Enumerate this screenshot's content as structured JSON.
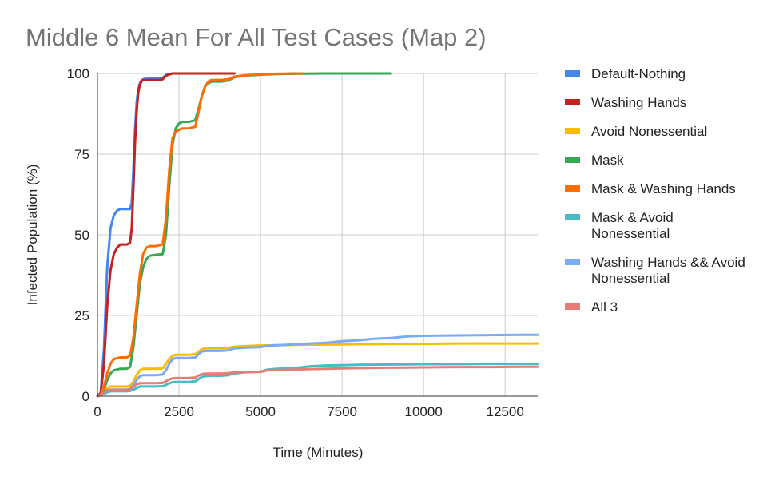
{
  "chart_data": {
    "type": "line",
    "title": "Middle 6 Mean For All Test Cases (Map 2)",
    "xlabel": "Time (Minutes)",
    "ylabel": "Infected Population (%)",
    "xlim": [
      0,
      13500
    ],
    "ylim": [
      0,
      100
    ],
    "xticks": [
      0,
      2500,
      5000,
      7500,
      10000,
      12500
    ],
    "yticks": [
      0,
      25,
      50,
      75,
      100
    ],
    "grid": true,
    "legend_position": "right",
    "series": [
      {
        "name": "Default-Nothing",
        "color": "#4285f4",
        "x": [
          0,
          100,
          200,
          300,
          400,
          500,
          600,
          700,
          800,
          900,
          1000,
          1050,
          1100,
          1150,
          1200,
          1250,
          1300,
          1350,
          1400,
          1500,
          1700,
          1900,
          2000,
          2100,
          2200,
          2300,
          2500,
          3000,
          3500,
          4000,
          4100
        ],
        "y": [
          0,
          1,
          15,
          40,
          52,
          56,
          57.5,
          58,
          58,
          58,
          58,
          60,
          70,
          82,
          91,
          95,
          97,
          97.8,
          98.2,
          98.5,
          98.5,
          98.5,
          98.7,
          99.5,
          99.8,
          100,
          100,
          100,
          100,
          100,
          100
        ]
      },
      {
        "name": "Washing Hands",
        "color": "#c5221f",
        "x": [
          0,
          100,
          200,
          300,
          400,
          500,
          600,
          700,
          800,
          900,
          1000,
          1050,
          1100,
          1150,
          1200,
          1250,
          1300,
          1350,
          1400,
          1500,
          1700,
          1900,
          2000,
          2100,
          2200,
          2300,
          2500,
          3000,
          3500,
          4000,
          4200
        ],
        "y": [
          0,
          1,
          10,
          28,
          39,
          44,
          46,
          47,
          47,
          47,
          47.5,
          52,
          64,
          78,
          88,
          94,
          96.5,
          97.5,
          98,
          98,
          98,
          98,
          98.2,
          99.3,
          99.7,
          100,
          100,
          100,
          100,
          100,
          100
        ]
      },
      {
        "name": "Avoid Nonessential",
        "color": "#fbbc04",
        "x": [
          0,
          100,
          200,
          300,
          400,
          500,
          700,
          900,
          1000,
          1100,
          1200,
          1300,
          1400,
          1600,
          1800,
          2000,
          2100,
          2200,
          2300,
          2400,
          2600,
          2800,
          3000,
          3100,
          3200,
          3300,
          3500,
          3800,
          4000,
          4200,
          4500,
          5000,
          5500,
          6000,
          7000,
          8000,
          9000,
          10000,
          11000,
          12000,
          13000,
          13500
        ],
        "y": [
          0,
          0.5,
          1.5,
          2.5,
          3,
          3,
          3,
          3,
          3.2,
          4.5,
          6.5,
          8,
          8.5,
          8.5,
          8.5,
          8.6,
          10,
          11.5,
          12.5,
          12.8,
          12.8,
          12.8,
          13,
          13.8,
          14.5,
          14.8,
          14.8,
          14.8,
          15,
          15.3,
          15.5,
          15.7,
          15.8,
          15.9,
          16,
          16.1,
          16.2,
          16.2,
          16.3,
          16.3,
          16.3,
          16.3
        ]
      },
      {
        "name": "Mask",
        "color": "#34a853",
        "x": [
          0,
          100,
          200,
          300,
          400,
          500,
          700,
          900,
          1000,
          1100,
          1200,
          1300,
          1400,
          1500,
          1600,
          1800,
          2000,
          2100,
          2200,
          2300,
          2400,
          2500,
          2600,
          2800,
          3000,
          3100,
          3200,
          3300,
          3400,
          3500,
          3800,
          4000,
          4200,
          4500,
          5000,
          5500,
          6000,
          7000,
          8000,
          9000
        ],
        "y": [
          0,
          0.5,
          2,
          5,
          7,
          8,
          8.5,
          8.5,
          9,
          15,
          25,
          35,
          40,
          42.5,
          43.5,
          43.8,
          44,
          50,
          65,
          78,
          83,
          84.5,
          85,
          85,
          85.5,
          89,
          93,
          96,
          97,
          97.5,
          97.5,
          97.8,
          98.8,
          99.3,
          99.6,
          99.8,
          99.9,
          100,
          100,
          100
        ]
      },
      {
        "name": "Mask & Washing Hands",
        "color": "#ff6d01",
        "x": [
          0,
          100,
          200,
          300,
          400,
          500,
          700,
          900,
          1000,
          1100,
          1200,
          1300,
          1400,
          1500,
          1600,
          1800,
          2000,
          2100,
          2200,
          2300,
          2400,
          2500,
          2600,
          2800,
          3000,
          3100,
          3200,
          3300,
          3400,
          3500,
          3800,
          4000,
          4200,
          4500,
          5000,
          5500,
          6000,
          6300
        ],
        "y": [
          0,
          0.5,
          3,
          7,
          10,
          11.5,
          12,
          12,
          12.5,
          18,
          28,
          38,
          44,
          46,
          46.5,
          46.5,
          47,
          55,
          70,
          80,
          82,
          82.5,
          83,
          83,
          83.5,
          88,
          93,
          96,
          97.5,
          98,
          98,
          98.2,
          99,
          99.4,
          99.7,
          99.9,
          100,
          100
        ]
      },
      {
        "name": "Mask & Avoid Nonessential",
        "color": "#46bdc6",
        "x": [
          0,
          100,
          200,
          300,
          400,
          500,
          700,
          900,
          1000,
          1100,
          1200,
          1300,
          1400,
          1600,
          1800,
          2000,
          2100,
          2200,
          2300,
          2400,
          2600,
          2800,
          3000,
          3100,
          3200,
          3300,
          3500,
          3800,
          4000,
          4200,
          4500,
          5000,
          5200,
          5500,
          6000,
          6500,
          7000,
          7500,
          8000,
          9000,
          10000,
          11000,
          12000,
          13000,
          13500
        ],
        "y": [
          0,
          0.3,
          0.8,
          1.2,
          1.5,
          1.5,
          1.5,
          1.5,
          1.6,
          2,
          2.5,
          3,
          3,
          3,
          3,
          3.1,
          3.5,
          4,
          4.3,
          4.4,
          4.4,
          4.4,
          4.6,
          5.3,
          6,
          6.2,
          6.3,
          6.3,
          6.5,
          7,
          7.4,
          7.6,
          8.2,
          8.5,
          8.7,
          9.2,
          9.5,
          9.6,
          9.7,
          9.8,
          9.9,
          9.9,
          10,
          10,
          10
        ]
      },
      {
        "name": "Washing Hands && Avoid Nonessential",
        "color": "#7baaf7",
        "x": [
          0,
          100,
          200,
          300,
          400,
          500,
          700,
          900,
          1000,
          1100,
          1200,
          1300,
          1400,
          1600,
          1800,
          2000,
          2100,
          2200,
          2300,
          2400,
          2600,
          2800,
          3000,
          3100,
          3200,
          3300,
          3500,
          3800,
          4000,
          4200,
          4500,
          5000,
          5200,
          5500,
          6000,
          6500,
          7000,
          7200,
          7500,
          8000,
          8500,
          9000,
          9500,
          10000,
          11000,
          12000,
          13000,
          13500
        ],
        "y": [
          0,
          0.5,
          1.2,
          1.8,
          2,
          2,
          2,
          2,
          2.2,
          3.5,
          5,
          6.2,
          6.5,
          6.5,
          6.5,
          6.7,
          8,
          10,
          11.5,
          11.8,
          11.8,
          11.8,
          12,
          13,
          13.8,
          14,
          14,
          14,
          14.2,
          14.8,
          15,
          15.2,
          15.6,
          15.8,
          16,
          16.3,
          16.5,
          16.7,
          17,
          17.3,
          17.8,
          18,
          18.5,
          18.7,
          18.8,
          18.9,
          19,
          19
        ]
      },
      {
        "name": "All 3",
        "color": "#e67c73",
        "x": [
          0,
          100,
          200,
          300,
          400,
          500,
          700,
          900,
          1000,
          1100,
          1200,
          1300,
          1400,
          1600,
          1800,
          2000,
          2100,
          2200,
          2300,
          2400,
          2600,
          2800,
          3000,
          3100,
          3200,
          3300,
          3500,
          3800,
          4000,
          4200,
          4500,
          5000,
          5200,
          5500,
          6000,
          6500,
          7000,
          7500,
          8000,
          9000,
          10000,
          11000,
          12000,
          13000,
          13500
        ],
        "y": [
          0,
          0.5,
          1.2,
          1.8,
          2,
          2,
          2,
          2,
          2.2,
          3,
          3.7,
          4,
          4,
          4,
          4,
          4.1,
          4.6,
          5.2,
          5.5,
          5.6,
          5.6,
          5.6,
          5.8,
          6.4,
          6.8,
          7,
          7,
          7,
          7.1,
          7.4,
          7.5,
          7.5,
          8,
          8.1,
          8.2,
          8.4,
          8.5,
          8.6,
          8.7,
          8.8,
          8.9,
          9,
          9,
          9.1,
          9.1
        ]
      }
    ]
  }
}
